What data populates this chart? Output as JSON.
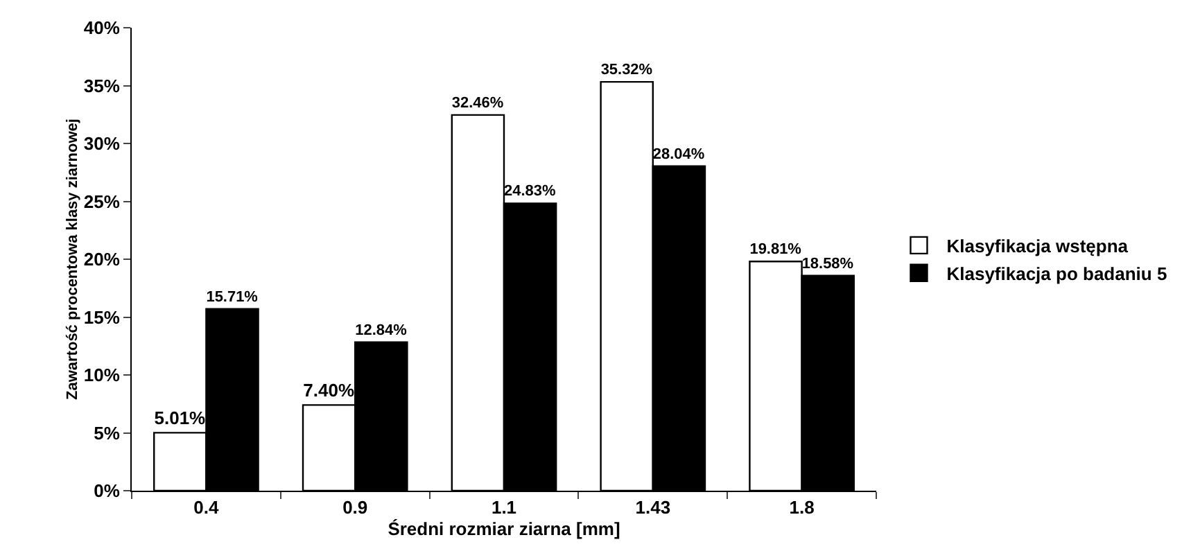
{
  "chart_data": {
    "type": "bar",
    "xlabel": "Średni rozmiar ziarna [mm]",
    "ylabel": "Zawartość procentowa klasy ziarnowej",
    "categories": [
      "0.4",
      "0.9",
      "1.1",
      "1.43",
      "1.8"
    ],
    "series": [
      {
        "name": "Klasyfikacja wstępna",
        "color": "#ffffff",
        "values": [
          5.01,
          7.4,
          32.46,
          35.32,
          19.81
        ],
        "value_labels": [
          "5.01%",
          "7.40%",
          "32.46%",
          "35.32%",
          "19.81%"
        ]
      },
      {
        "name": "Klasyfikacja po badaniu 5",
        "color": "#000000",
        "values": [
          15.71,
          12.84,
          24.83,
          28.04,
          18.58
        ],
        "value_labels": [
          "15.71%",
          "12.84%",
          "24.83%",
          "28.04%",
          "18.58%"
        ]
      }
    ],
    "ylim": [
      0,
      40
    ],
    "yticks": [
      {
        "value": 0,
        "label": "0%"
      },
      {
        "value": 5,
        "label": "5%"
      },
      {
        "value": 10,
        "label": "10%"
      },
      {
        "value": 15,
        "label": "15%"
      },
      {
        "value": 20,
        "label": "20%"
      },
      {
        "value": 25,
        "label": "25%"
      },
      {
        "value": 30,
        "label": "30%"
      },
      {
        "value": 35,
        "label": "35%"
      },
      {
        "value": 40,
        "label": "40%"
      }
    ],
    "grid": false,
    "legend": "right"
  }
}
